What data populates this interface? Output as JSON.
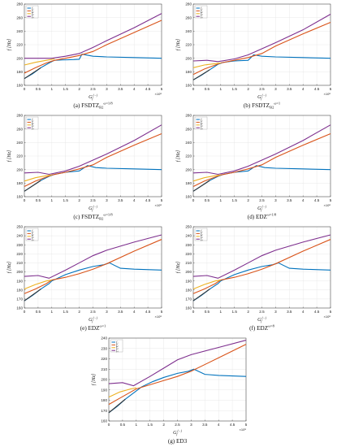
{
  "chart_data": [
    {
      "type": "line",
      "caption_main": "(a) FSDTZ",
      "caption_sub": "B2",
      "caption_sup": "ω=1/8",
      "ylabel": "f [Hz]",
      "xlabel": "G",
      "xlabel_sub": "f",
      "xlabel_sup": "(−)",
      "x_exponent": "×10⁸",
      "xlim": [
        0,
        5
      ],
      "ylim": [
        160,
        280
      ],
      "xticks": [
        "0",
        "0.5",
        "1",
        "1.5",
        "2",
        "2.5",
        "3",
        "3.5",
        "4",
        "4.5",
        "5"
      ],
      "yticks": [
        "160",
        "180",
        "200",
        "220",
        "240",
        "260",
        "280"
      ],
      "legend": [
        "f₁",
        "f₂",
        "f₃",
        "f₄"
      ],
      "series": [
        {
          "name": "f1",
          "color": "#0072bd",
          "x": [
            0,
            0.3,
            0.6,
            0.9,
            1.1,
            1.4,
            1.8,
            2.0,
            2.1,
            2.5,
            3,
            4,
            5
          ],
          "y": [
            170,
            177,
            186,
            193,
            197,
            197.5,
            198,
            198.5,
            206,
            203,
            202,
            201,
            200
          ]
        },
        {
          "name": "f2",
          "color": "#d95319",
          "x": [
            0,
            0.4,
            0.8,
            1.1,
            1.5,
            2.0,
            2.5,
            3,
            4,
            5
          ],
          "y": [
            178,
            186,
            193,
            197,
            200,
            204,
            210,
            220,
            238,
            256
          ]
        },
        {
          "name": "f3",
          "color": "#edb120",
          "x": [
            0,
            0.4,
            0.8,
            1.1
          ],
          "y": [
            190,
            194,
            197,
            199
          ]
        },
        {
          "name": "f4",
          "color": "#7e2f8e",
          "x": [
            0,
            0.6,
            1.0,
            1.5,
            2.0,
            2.5,
            3,
            4,
            5
          ],
          "y": [
            200,
            200,
            200,
            203,
            207,
            216,
            226,
            245,
            266
          ]
        }
      ]
    },
    {
      "type": "line",
      "caption_main": "(b) FSDTZ",
      "caption_sub": "B2",
      "caption_sup": "ω=1",
      "ylabel": "f [Hz]",
      "xlabel": "G",
      "xlabel_sub": "f",
      "xlabel_sup": "(−)",
      "x_exponent": "×10⁸",
      "xlim": [
        0,
        5
      ],
      "ylim": [
        160,
        280
      ],
      "xticks": [
        "0",
        "0.5",
        "1",
        "1.5",
        "2",
        "2.5",
        "3",
        "3.5",
        "4",
        "4.5",
        "5"
      ],
      "yticks": [
        "160",
        "180",
        "200",
        "220",
        "240",
        "260",
        "280"
      ],
      "legend": [
        "f₁",
        "f₂",
        "f₃",
        "f₄"
      ],
      "series": [
        {
          "name": "f1",
          "color": "#0072bd",
          "x": [
            0,
            0.3,
            0.6,
            0.9,
            1.1,
            1.5,
            2.0,
            2.2,
            2.5,
            3,
            4,
            5
          ],
          "y": [
            168,
            175,
            183,
            191,
            194,
            196,
            197,
            205,
            203,
            202,
            201,
            200
          ]
        },
        {
          "name": "f2",
          "color": "#d95319",
          "x": [
            0,
            0.4,
            0.8,
            1.0,
            1.5,
            2.0,
            2.5,
            3,
            4,
            5
          ],
          "y": [
            176,
            184,
            190,
            193,
            197,
            201,
            207,
            218,
            236,
            253
          ]
        },
        {
          "name": "f3",
          "color": "#edb120",
          "x": [
            0,
            0.4,
            0.8,
            1.0
          ],
          "y": [
            186,
            190,
            192,
            193
          ]
        },
        {
          "name": "f4",
          "color": "#7e2f8e",
          "x": [
            0,
            0.5,
            0.9,
            1.5,
            2.0,
            2.5,
            3,
            4,
            5
          ],
          "y": [
            196,
            197,
            195,
            199,
            205,
            214,
            223,
            242,
            265
          ]
        }
      ]
    },
    {
      "type": "line",
      "caption_main": "(c) FSDTZ",
      "caption_sub": "B2",
      "caption_sup": "ω=1/8",
      "ylabel": "f [Hz]",
      "xlabel": "G",
      "xlabel_sub": "f",
      "xlabel_sup": "(−)",
      "x_exponent": "×10⁸",
      "xlim": [
        0,
        5
      ],
      "ylim": [
        160,
        280
      ],
      "xticks": [
        "0",
        "0.5",
        "1",
        "1.5",
        "2",
        "2.5",
        "3",
        "3.5",
        "4",
        "4.5",
        "5"
      ],
      "yticks": [
        "160",
        "180",
        "200",
        "220",
        "240",
        "260",
        "280"
      ],
      "legend": [
        "f₁",
        "f₂",
        "f₃",
        "f₄"
      ],
      "series": [
        {
          "name": "f1",
          "color": "#0072bd",
          "x": [
            0,
            0.3,
            0.6,
            0.9,
            1.1,
            1.5,
            2.0,
            2.3,
            2.6,
            3,
            4,
            5
          ],
          "y": [
            168,
            176,
            184,
            190,
            193,
            196,
            198,
            206,
            203,
            202,
            201,
            200
          ]
        },
        {
          "name": "f2",
          "color": "#d95319",
          "x": [
            0,
            0.4,
            0.8,
            1.0,
            1.5,
            2.0,
            2.5,
            3,
            4,
            5
          ],
          "y": [
            175,
            183,
            189,
            192,
            196,
            201,
            207,
            218,
            236,
            253
          ]
        },
        {
          "name": "f3",
          "color": "#edb120",
          "x": [
            0,
            0.4,
            0.8,
            1.0
          ],
          "y": [
            183,
            188,
            191,
            192
          ]
        },
        {
          "name": "f4",
          "color": "#7e2f8e",
          "x": [
            0,
            0.5,
            0.9,
            1.5,
            2.0,
            2.5,
            3,
            4,
            5
          ],
          "y": [
            195,
            196,
            193,
            198,
            205,
            214,
            223,
            243,
            266
          ]
        }
      ]
    },
    {
      "type": "line",
      "caption_main": "(d) EDZ",
      "caption_sub": "",
      "caption_sup": "ω=1/8",
      "ylabel": "f [Hz]",
      "xlabel": "G",
      "xlabel_sub": "f",
      "xlabel_sup": "(−)",
      "x_exponent": "×10⁸",
      "xlim": [
        0,
        5
      ],
      "ylim": [
        160,
        280
      ],
      "xticks": [
        "0",
        "0.5",
        "1",
        "1.5",
        "2",
        "2.5",
        "3",
        "3.5",
        "4",
        "4.5",
        "5"
      ],
      "yticks": [
        "160",
        "180",
        "200",
        "220",
        "240",
        "260",
        "280"
      ],
      "legend": [
        "f₁",
        "f₂",
        "f₃",
        "f₄"
      ],
      "series": [
        {
          "name": "f1",
          "color": "#0072bd",
          "x": [
            0,
            0.3,
            0.6,
            0.9,
            1.1,
            1.5,
            2.0,
            2.3,
            2.6,
            3,
            4,
            5
          ],
          "y": [
            168,
            176,
            184,
            190,
            193,
            196,
            198,
            206,
            203,
            202,
            201,
            200
          ]
        },
        {
          "name": "f2",
          "color": "#d95319",
          "x": [
            0,
            0.4,
            0.8,
            1.0,
            1.5,
            2.0,
            2.5,
            3,
            4,
            5
          ],
          "y": [
            175,
            183,
            189,
            192,
            196,
            201,
            207,
            218,
            236,
            253
          ]
        },
        {
          "name": "f3",
          "color": "#edb120",
          "x": [
            0,
            0.4,
            0.8,
            1.0
          ],
          "y": [
            183,
            188,
            191,
            192
          ]
        },
        {
          "name": "f4",
          "color": "#7e2f8e",
          "x": [
            0,
            0.5,
            0.9,
            1.5,
            2.0,
            2.5,
            3,
            4,
            5
          ],
          "y": [
            195,
            196,
            193,
            198,
            205,
            214,
            223,
            243,
            266
          ]
        }
      ]
    },
    {
      "type": "line",
      "caption_main": "(e) EDZ",
      "caption_sub": "",
      "caption_sup": "ω=1",
      "ylabel": "f [Hz]",
      "xlabel": "G",
      "xlabel_sub": "f",
      "xlabel_sup": "(−)",
      "x_exponent": "×10⁸",
      "xlim": [
        0,
        5
      ],
      "ylim": [
        160,
        250
      ],
      "xticks": [
        "0",
        "0.5",
        "1",
        "1.5",
        "2",
        "2.5",
        "3",
        "3.5",
        "4",
        "4.5",
        "5"
      ],
      "yticks": [
        "160",
        "170",
        "180",
        "190",
        "200",
        "210",
        "220",
        "230",
        "240",
        "250"
      ],
      "legend": [
        "f₁",
        "f₂",
        "f₃",
        "f₄"
      ],
      "series": [
        {
          "name": "f1",
          "color": "#0072bd",
          "x": [
            0,
            0.3,
            0.6,
            0.9,
            1.0,
            1.5,
            2.0,
            2.5,
            2.9,
            3.1,
            3.5,
            4,
            5
          ],
          "y": [
            168,
            174,
            181,
            187,
            190,
            197,
            202,
            206,
            208,
            210,
            204,
            203,
            202
          ]
        },
        {
          "name": "f2",
          "color": "#d95319",
          "x": [
            0,
            0.4,
            0.8,
            1.0,
            1.5,
            2.0,
            2.5,
            3,
            4,
            5
          ],
          "y": [
            176,
            181,
            187,
            191,
            194,
            198,
            203,
            209,
            223,
            236
          ]
        },
        {
          "name": "f3",
          "color": "#edb120",
          "x": [
            0,
            0.4,
            0.8,
            1.0
          ],
          "y": [
            181,
            186,
            190,
            191
          ]
        },
        {
          "name": "f4",
          "color": "#7e2f8e",
          "x": [
            0,
            0.5,
            0.9,
            1.5,
            2.0,
            2.5,
            3,
            4,
            5
          ],
          "y": [
            195,
            196,
            193,
            202,
            210,
            218,
            224,
            233,
            241
          ]
        }
      ]
    },
    {
      "type": "line",
      "caption_main": "(f) EDZ",
      "caption_sub": "",
      "caption_sup": "ω=8",
      "ylabel": "f [Hz]",
      "xlabel": "G",
      "xlabel_sub": "f",
      "xlabel_sup": "(−)",
      "x_exponent": "×10⁸",
      "xlim": [
        0,
        5
      ],
      "ylim": [
        160,
        250
      ],
      "xticks": [
        "0",
        "0.5",
        "1",
        "1.5",
        "2",
        "2.5",
        "3",
        "3.5",
        "4",
        "4.5",
        "5"
      ],
      "yticks": [
        "160",
        "170",
        "180",
        "190",
        "200",
        "210",
        "220",
        "230",
        "240",
        "250"
      ],
      "legend": [
        "f₁",
        "f₂",
        "f₃",
        "f₄"
      ],
      "series": [
        {
          "name": "f1",
          "color": "#0072bd",
          "x": [
            0,
            0.3,
            0.6,
            0.9,
            1.0,
            1.5,
            2.0,
            2.5,
            2.9,
            3.1,
            3.5,
            4,
            5
          ],
          "y": [
            168,
            174,
            181,
            187,
            190,
            197,
            202,
            206,
            208,
            210,
            204,
            203,
            202
          ]
        },
        {
          "name": "f2",
          "color": "#d95319",
          "x": [
            0,
            0.4,
            0.8,
            1.0,
            1.5,
            2.0,
            2.5,
            3,
            4,
            5
          ],
          "y": [
            176,
            181,
            187,
            191,
            194,
            198,
            203,
            209,
            223,
            236
          ]
        },
        {
          "name": "f3",
          "color": "#edb120",
          "x": [
            0,
            0.4,
            0.8,
            1.0
          ],
          "y": [
            181,
            186,
            190,
            191
          ]
        },
        {
          "name": "f4",
          "color": "#7e2f8e",
          "x": [
            0,
            0.5,
            0.9,
            1.5,
            2.0,
            2.5,
            3,
            4,
            5
          ],
          "y": [
            195,
            196,
            193,
            202,
            210,
            218,
            224,
            233,
            241
          ]
        }
      ]
    },
    {
      "type": "line",
      "caption_main": "(g) ED3",
      "caption_sub": "",
      "caption_sup": "",
      "ylabel": "f [Hz]",
      "xlabel": "G",
      "xlabel_sub": "f",
      "xlabel_sup": "(−)",
      "x_exponent": "×10⁸",
      "xlim": [
        0,
        5
      ],
      "ylim": [
        160,
        240
      ],
      "xticks": [
        "0",
        "0.5",
        "1",
        "1.5",
        "2",
        "2.5",
        "3",
        "3.5",
        "4",
        "4.5",
        "5"
      ],
      "yticks": [
        "160",
        "170",
        "180",
        "190",
        "200",
        "210",
        "220",
        "230",
        "240"
      ],
      "legend": [
        "f₁",
        "f₂",
        "f₃",
        "f₄"
      ],
      "series": [
        {
          "name": "f1",
          "color": "#0072bd",
          "x": [
            0,
            0.3,
            0.6,
            0.9,
            1.2,
            1.6,
            2.0,
            2.5,
            2.9,
            3.1,
            3.5,
            4,
            5
          ],
          "y": [
            168,
            174,
            181,
            187,
            193,
            198,
            202,
            206,
            208,
            210,
            205,
            204,
            203
          ]
        },
        {
          "name": "f2",
          "color": "#d95319",
          "x": [
            0,
            0.4,
            0.8,
            1.0,
            1.5,
            2.0,
            2.5,
            3,
            4,
            5
          ],
          "y": [
            176,
            182,
            188,
            191,
            195,
            199,
            203,
            208,
            221,
            234
          ]
        },
        {
          "name": "f3",
          "color": "#edb120",
          "x": [
            0,
            0.4,
            0.8,
            1.0
          ],
          "y": [
            183,
            188,
            191,
            192
          ]
        },
        {
          "name": "f4",
          "color": "#7e2f8e",
          "x": [
            0,
            0.5,
            0.9,
            1.5,
            2.0,
            2.5,
            3,
            4,
            5
          ],
          "y": [
            196,
            197,
            194,
            203,
            211,
            219,
            224,
            231,
            238
          ]
        }
      ]
    }
  ]
}
